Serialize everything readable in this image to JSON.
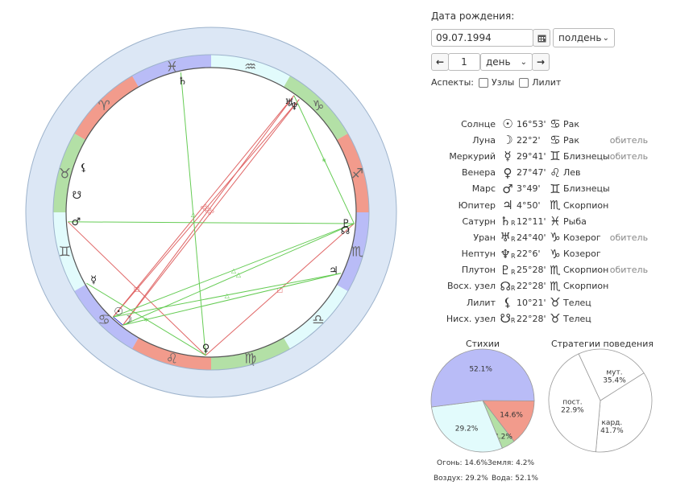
{
  "birth": {
    "label": "Дата рождения:",
    "date": "09.07.1994",
    "time": "полдень",
    "step_value": "1",
    "step_unit": "день",
    "aspects_label": "Аспекты:",
    "opt_nodes": "Узлы",
    "opt_lilith": "Лилит"
  },
  "icons": {
    "calendar": "calendar-icon",
    "prev": "arrow-left-icon",
    "next": "arrow-right-icon",
    "dropdown": "chevron-down-icon"
  },
  "zodiac_glyphs": [
    "♈",
    "♉",
    "♊",
    "♋",
    "♌",
    "♍",
    "♎",
    "♏",
    "♐",
    "♑",
    "♒",
    "♓"
  ],
  "zodiac_colors": [
    "#f29b8c",
    "#b3e0a6",
    "#e2fbfc",
    "#b9bcf7",
    "#f29b8c",
    "#b3e0a6",
    "#e2fbfc",
    "#b9bcf7",
    "#f29b8c",
    "#b3e0a6",
    "#e2fbfc",
    "#b9bcf7"
  ],
  "planets": [
    {
      "name": "Солнце",
      "glyph": "☉",
      "retro": false,
      "deg": "16°53'",
      "sign_glyph": "♋",
      "sign": "Рак",
      "dignity": "",
      "lon": 106.9
    },
    {
      "name": "Луна",
      "glyph": "☽",
      "retro": false,
      "deg": "22°2'",
      "sign_glyph": "♋",
      "sign": "Рак",
      "dignity": "обитель",
      "lon": 112.0
    },
    {
      "name": "Меркурий",
      "glyph": "☿",
      "retro": false,
      "deg": "29°41'",
      "sign_glyph": "♊",
      "sign": "Близнецы",
      "dignity": "обитель",
      "lon": 89.7
    },
    {
      "name": "Венера",
      "glyph": "♀",
      "retro": false,
      "deg": "27°47'",
      "sign_glyph": "♌",
      "sign": "Лев",
      "dignity": "",
      "lon": 147.8
    },
    {
      "name": "Марс",
      "glyph": "♂",
      "retro": false,
      "deg": "3°49'",
      "sign_glyph": "♊",
      "sign": "Близнецы",
      "dignity": "",
      "lon": 63.8
    },
    {
      "name": "Юпитер",
      "glyph": "♃",
      "retro": false,
      "deg": "4°50'",
      "sign_glyph": "♏",
      "sign": "Скорпион",
      "dignity": "",
      "lon": 214.8
    },
    {
      "name": "Сатурн",
      "glyph": "♄",
      "retro": true,
      "deg": "12°11'",
      "sign_glyph": "♓",
      "sign": "Рыба",
      "dignity": "",
      "lon": 342.2
    },
    {
      "name": "Уран",
      "glyph": "♅",
      "retro": true,
      "deg": "24°40'",
      "sign_glyph": "♑",
      "sign": "Козерог",
      "dignity": "обитель",
      "lon": 294.7
    },
    {
      "name": "Нептун",
      "glyph": "♆",
      "retro": true,
      "deg": "22°6'",
      "sign_glyph": "♑",
      "sign": "Козерог",
      "dignity": "",
      "lon": 292.1
    },
    {
      "name": "Плутон",
      "glyph": "♇",
      "retro": true,
      "deg": "25°28'",
      "sign_glyph": "♏",
      "sign": "Скорпион",
      "dignity": "обитель",
      "lon": 235.5
    },
    {
      "name": "Восх. узел",
      "glyph": "☊",
      "retro": true,
      "deg": "22°28'",
      "sign_glyph": "♏",
      "sign": "Скорпион",
      "dignity": "",
      "lon": 232.5
    },
    {
      "name": "Лилит",
      "glyph": "⚸",
      "retro": false,
      "deg": "10°21'",
      "sign_glyph": "♉",
      "sign": "Телец",
      "dignity": "",
      "lon": 40.4
    },
    {
      "name": "Нисх. узел",
      "glyph": "☋",
      "retro": true,
      "deg": "22°28'",
      "sign_glyph": "♉",
      "sign": "Телец",
      "dignity": "",
      "lon": 52.5
    }
  ],
  "aspects": [
    {
      "a": 1,
      "b": 8,
      "color": "#e06666",
      "mark": "☍"
    },
    {
      "a": 0,
      "b": 7,
      "color": "#e06666",
      "mark": "☍"
    },
    {
      "a": 0,
      "b": 8,
      "color": "#e06666",
      "mark": "☍"
    },
    {
      "a": 1,
      "b": 7,
      "color": "#e06666",
      "mark": "☍"
    },
    {
      "a": 3,
      "b": 9,
      "color": "#e06666",
      "mark": "□"
    },
    {
      "a": 3,
      "b": 4,
      "color": "#e06666",
      "mark": "□"
    },
    {
      "a": 0,
      "b": 1,
      "color": "#3333cc",
      "mark": ""
    },
    {
      "a": 7,
      "b": 9,
      "color": "#66cc55",
      "mark": "∗"
    },
    {
      "a": 6,
      "b": 3,
      "color": "#66cc55",
      "mark": "△"
    },
    {
      "a": 0,
      "b": 9,
      "color": "#66cc55",
      "mark": "△"
    },
    {
      "a": 1,
      "b": 9,
      "color": "#66cc55",
      "mark": "△"
    },
    {
      "a": 0,
      "b": 5,
      "color": "#66cc55",
      "mark": "△"
    },
    {
      "a": 2,
      "b": 3,
      "color": "#66cc55",
      "mark": "∗"
    },
    {
      "a": 4,
      "b": 9,
      "color": "#66cc55",
      "mark": ""
    },
    {
      "a": 1,
      "b": 5,
      "color": "#66cc55",
      "mark": ""
    }
  ],
  "chart_data": [
    {
      "type": "pie",
      "title": "Стихии",
      "series": [
        {
          "name": "Вода",
          "value": 52.1,
          "color": "#b9bcf7"
        },
        {
          "name": "Огонь",
          "value": 14.6,
          "color": "#f29b8c"
        },
        {
          "name": "Земля",
          "value": 4.2,
          "color": "#b3e0a6"
        },
        {
          "name": "Воздух",
          "value": 29.2,
          "color": "#e2fbfc"
        }
      ],
      "labels": [
        "52.1%",
        "14.6%",
        "4.2%",
        "29.2%"
      ],
      "legend": [
        "Огонь: 14.6%",
        "Земля: 4.2%",
        "Воздух: 29.2%",
        "Вода: 52.1%"
      ]
    },
    {
      "type": "pie",
      "title": "Стратегии поведения",
      "series": [
        {
          "name": "мут.",
          "value": 35.4
        },
        {
          "name": "кард.",
          "value": 41.7
        },
        {
          "name": "пост.",
          "value": 22.9
        }
      ],
      "labels": [
        "мут.",
        "35.4%",
        "кард.",
        "41.7%",
        "пост.",
        "22.9%"
      ]
    }
  ]
}
